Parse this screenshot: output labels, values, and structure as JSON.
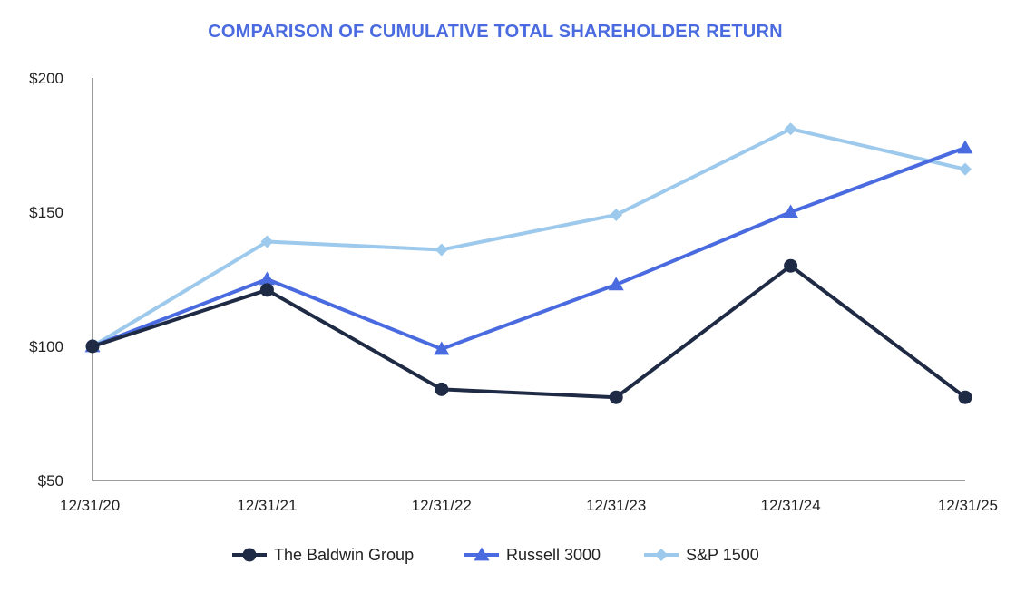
{
  "chart_data": {
    "type": "line",
    "title": "COMPARISON OF CUMULATIVE TOTAL SHAREHOLDER RETURN",
    "xlabel": "",
    "ylabel": "",
    "categories": [
      "12/31/20",
      "12/31/21",
      "12/31/22",
      "12/31/23",
      "12/31/24",
      "12/31/25"
    ],
    "y_ticks": [
      50,
      100,
      150,
      200
    ],
    "y_tick_labels": [
      "$50",
      "$100",
      "$150",
      "$200"
    ],
    "ylim": [
      50,
      200
    ],
    "grid": false,
    "legend_position": "bottom-center",
    "series": [
      {
        "name": "The Baldwin Group",
        "marker": "circle",
        "color": "#1f2a44",
        "values": [
          100,
          121,
          84,
          81,
          130,
          81
        ]
      },
      {
        "name": "Russell 3000",
        "marker": "triangle",
        "color": "#4a6be0",
        "values": [
          100,
          125,
          99,
          123,
          150,
          174
        ]
      },
      {
        "name": "S&P 1500",
        "marker": "diamond",
        "color": "#9cc9ec",
        "values": [
          100,
          139,
          136,
          149,
          181,
          166
        ]
      }
    ]
  }
}
